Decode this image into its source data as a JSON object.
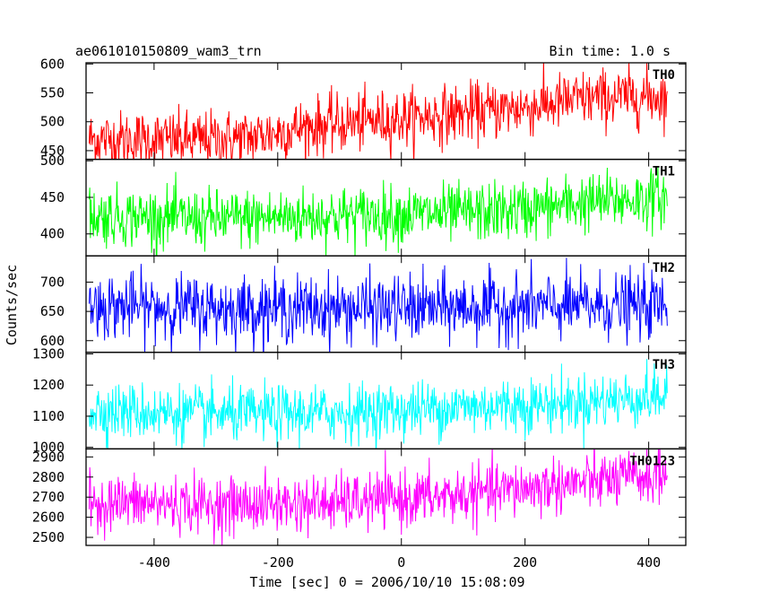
{
  "header": {
    "title": "ae061010150809_wam3_trn",
    "bin_time": "Bin time: 1.0 s"
  },
  "chart_data": {
    "type": "line",
    "title": "ae061010150809_wam3_trn",
    "subtitle": "Bin time: 1.0 s",
    "xlabel": "Time [sec] 0 = 2006/10/10 15:08:09",
    "ylabel": "Counts/sec",
    "xlim": [
      -510,
      460
    ],
    "x_ticks": [
      -400,
      -200,
      0,
      200,
      400
    ],
    "x_step": 1,
    "x_range": [
      -505,
      430
    ],
    "panels": [
      {
        "name": "TH0",
        "color": "#ff0000",
        "ylim": [
          435,
          602
        ],
        "y_ticks": [
          450,
          500,
          550,
          600
        ],
        "trend": [
          [
            -505,
            470
          ],
          [
            -340,
            468
          ],
          [
            -250,
            472
          ],
          [
            -150,
            492
          ],
          [
            -60,
            500
          ],
          [
            100,
            515
          ],
          [
            200,
            525
          ],
          [
            300,
            540
          ],
          [
            430,
            545
          ]
        ],
        "noise_sd": 25
      },
      {
        "name": "TH1",
        "color": "#00ff00",
        "ylim": [
          370,
          502
        ],
        "y_ticks": [
          400,
          450,
          500
        ],
        "trend": [
          [
            -505,
            425
          ],
          [
            -300,
            420
          ],
          [
            -100,
            425
          ],
          [
            100,
            428
          ],
          [
            200,
            433
          ],
          [
            300,
            443
          ],
          [
            430,
            450
          ]
        ],
        "noise_sd": 20
      },
      {
        "name": "TH2",
        "color": "#0000ff",
        "ylim": [
          580,
          745
        ],
        "y_ticks": [
          600,
          650,
          700
        ],
        "trend": [
          [
            -505,
            660
          ],
          [
            -300,
            655
          ],
          [
            0,
            655
          ],
          [
            200,
            658
          ],
          [
            430,
            660
          ]
        ],
        "noise_sd": 28
      },
      {
        "name": "TH3",
        "color": "#00ffff",
        "ylim": [
          995,
          1305
        ],
        "y_ticks": [
          1000,
          1100,
          1200,
          1300
        ],
        "trend": [
          [
            -505,
            1120
          ],
          [
            -300,
            1105
          ],
          [
            -100,
            1110
          ],
          [
            100,
            1130
          ],
          [
            250,
            1140
          ],
          [
            430,
            1165
          ]
        ],
        "noise_sd": 45
      },
      {
        "name": "TH0123",
        "color": "#ff00ff",
        "ylim": [
          2460,
          2940
        ],
        "y_ticks": [
          2500,
          2600,
          2700,
          2800,
          2900
        ],
        "trend": [
          [
            -505,
            2675
          ],
          [
            -300,
            2660
          ],
          [
            -100,
            2670
          ],
          [
            100,
            2710
          ],
          [
            250,
            2760
          ],
          [
            430,
            2810
          ]
        ],
        "noise_sd": 70
      }
    ]
  }
}
